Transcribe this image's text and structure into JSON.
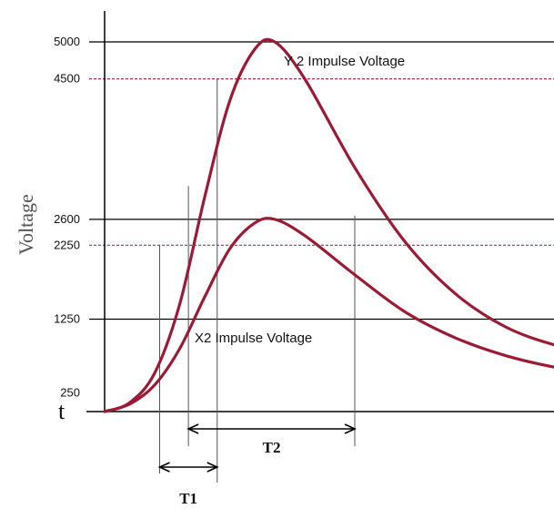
{
  "chart_data": {
    "type": "line",
    "ylabel": "Voltage",
    "origin_label": "t",
    "y_ticks": [
      5000,
      4500,
      2600,
      2250,
      1250,
      250
    ],
    "dashed_ticks": [
      4500,
      2250
    ],
    "series": [
      {
        "name": "Y 2 Impulse Voltage",
        "peak": 5000,
        "color": "#9a1b35",
        "points": [
          [
            0,
            0
          ],
          [
            1,
            120
          ],
          [
            2,
            520
          ],
          [
            3,
            1450
          ],
          [
            4,
            2900
          ],
          [
            5,
            4200
          ],
          [
            6,
            4900
          ],
          [
            6.8,
            5000
          ],
          [
            8,
            4500
          ],
          [
            10,
            3300
          ],
          [
            12,
            2300
          ],
          [
            14,
            1600
          ],
          [
            16,
            1150
          ],
          [
            18,
            900
          ],
          [
            20,
            760
          ]
        ]
      },
      {
        "name": "X2 Impulse Voltage",
        "peak": 2600,
        "color": "#9a1b35",
        "points": [
          [
            0,
            0
          ],
          [
            1,
            100
          ],
          [
            2,
            360
          ],
          [
            3,
            850
          ],
          [
            4,
            1550
          ],
          [
            5,
            2200
          ],
          [
            6,
            2550
          ],
          [
            6.8,
            2600
          ],
          [
            8,
            2380
          ],
          [
            10,
            1850
          ],
          [
            12,
            1350
          ],
          [
            14,
            1000
          ],
          [
            16,
            760
          ],
          [
            18,
            600
          ],
          [
            20,
            500
          ]
        ]
      }
    ],
    "annotations": [
      {
        "label": "T1",
        "from": 2.55,
        "to": 5.05
      },
      {
        "label": "T2",
        "from": 3.75,
        "to": 11.0
      }
    ]
  }
}
